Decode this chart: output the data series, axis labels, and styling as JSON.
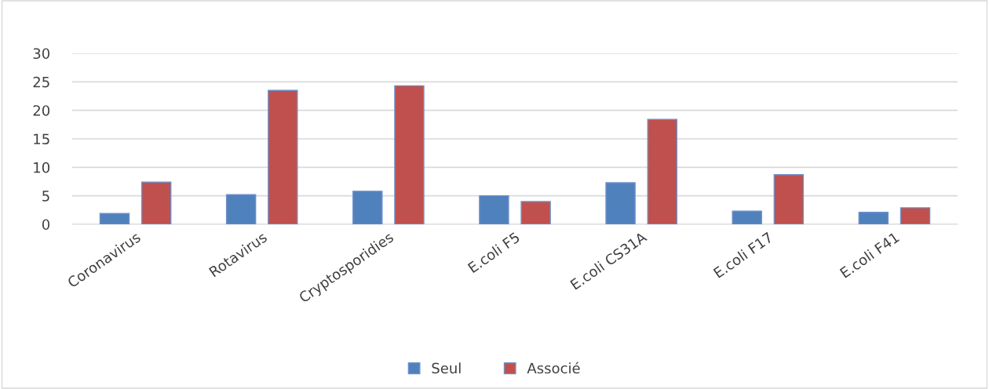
{
  "chart_data": {
    "type": "bar",
    "categories": [
      "Coronavirus",
      "Rotavirus",
      "Cryptosporidies",
      "E.coli F5",
      "E.coli CS31A",
      "E.coli F17",
      "E.coli F41"
    ],
    "series": [
      {
        "name": "Seul",
        "color": "#4f81bd",
        "values": [
          1.9,
          5.2,
          5.8,
          5.0,
          7.3,
          2.3,
          2.1
        ]
      },
      {
        "name": "Associé",
        "color": "#c0504d",
        "values": [
          7.4,
          23.5,
          24.3,
          4.0,
          18.4,
          8.7,
          2.9
        ]
      }
    ],
    "ylim": [
      0,
      30
    ],
    "yticks": [
      0,
      5,
      10,
      15,
      20,
      25,
      30
    ],
    "grid": "y",
    "legend": "bottom"
  }
}
